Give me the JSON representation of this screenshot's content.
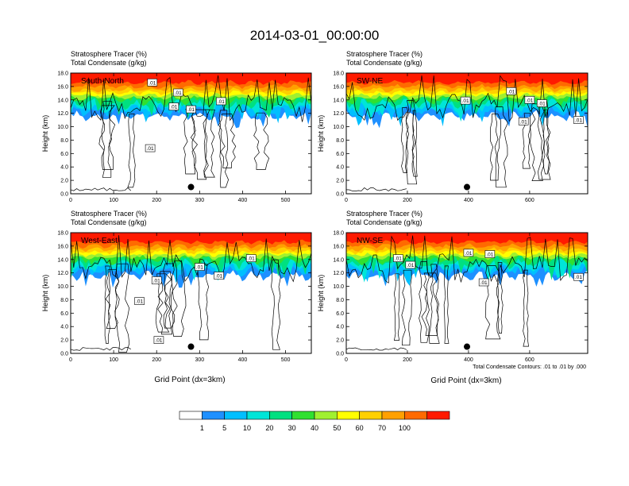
{
  "page_title": "2014-03-01_00:00:00",
  "footnote": "Total Condensate Contours: .01 to .01 by .000",
  "colorbar": {
    "colors": [
      "#ffffff",
      "#1e90ff",
      "#00bfff",
      "#00e5d8",
      "#00e080",
      "#30e030",
      "#a0f030",
      "#ffff00",
      "#ffd000",
      "#ffa000",
      "#ff6a00",
      "#ff1a00"
    ],
    "labels": [
      "1",
      "5",
      "10",
      "20",
      "30",
      "40",
      "50",
      "60",
      "70",
      "100"
    ]
  },
  "chart_data": [
    {
      "type": "heatmap",
      "subtitle_line1": "Stratosphere Tracer   (%)",
      "subtitle_line2": "Total Condensate   (g/kg)",
      "panel_label": "South-North",
      "xlabel": "",
      "ylabel": "Height (km)",
      "xlim": [
        0,
        560
      ],
      "ylim": [
        0,
        18
      ],
      "xticks": [
        "0",
        "100",
        "200",
        "300",
        "400",
        "500"
      ],
      "yticks": [
        "0.0",
        "2.0",
        "4.0",
        "6.0",
        "8.0",
        "10.0",
        "12.0",
        "14.0",
        "16.0",
        "18.0"
      ],
      "contour_labels": [
        ".01",
        ".01",
        ".01",
        ".01",
        ".01",
        ".01"
      ],
      "marker": {
        "x": 280,
        "y": 1.0
      }
    },
    {
      "type": "heatmap",
      "subtitle_line1": "Stratosphere Tracer   (%)",
      "subtitle_line2": "Total Condensate   (g/kg)",
      "panel_label": "SW-NE",
      "xlabel": "",
      "ylabel": "Height (km)",
      "xlim": [
        0,
        790
      ],
      "ylim": [
        0,
        18
      ],
      "xticks": [
        "0",
        "200",
        "400",
        "600"
      ],
      "yticks": [
        "0.0",
        "2.0",
        "4.0",
        "6.0",
        "8.0",
        "10.0",
        "12.0",
        "14.0",
        "16.0",
        "18.0"
      ],
      "contour_labels": [
        ".01",
        ".01",
        ".01",
        ".01",
        ".01",
        ".01"
      ],
      "marker": {
        "x": 395,
        "y": 1.0
      }
    },
    {
      "type": "heatmap",
      "subtitle_line1": "Stratosphere Tracer   (%)",
      "subtitle_line2": "Total Condensate   (g/kg)",
      "panel_label": "West-East",
      "xlabel": "Grid Point (dx=3km)",
      "ylabel": "Height (km)",
      "xlim": [
        0,
        560
      ],
      "ylim": [
        0,
        18
      ],
      "xticks": [
        "0",
        "100",
        "200",
        "300",
        "400",
        "500"
      ],
      "yticks": [
        "0.0",
        "2.0",
        "4.0",
        "6.0",
        "8.0",
        "10.0",
        "12.0",
        "14.0",
        "16.0",
        "18.0"
      ],
      "contour_labels": [
        ".01",
        ".01",
        ".01",
        ".01",
        ".01",
        ".01"
      ],
      "marker": {
        "x": 280,
        "y": 1.0
      }
    },
    {
      "type": "heatmap",
      "subtitle_line1": "Stratosphere Tracer   (%)",
      "subtitle_line2": "Total Condensate   (g/kg)",
      "panel_label": "NW-SE",
      "xlabel": "Grid Point (dx=3km)",
      "ylabel": "Height (km)",
      "xlim": [
        0,
        790
      ],
      "ylim": [
        0,
        18
      ],
      "xticks": [
        "0",
        "200",
        "400",
        "600"
      ],
      "yticks": [
        "0.0",
        "2.0",
        "4.0",
        "6.0",
        "8.0",
        "10.0",
        "12.0",
        "14.0",
        "16.0",
        "18.0"
      ],
      "contour_labels": [
        ".01",
        ".01",
        ".01",
        ".01",
        ".01",
        ".01"
      ],
      "marker": {
        "x": 395,
        "y": 1.0
      }
    }
  ]
}
